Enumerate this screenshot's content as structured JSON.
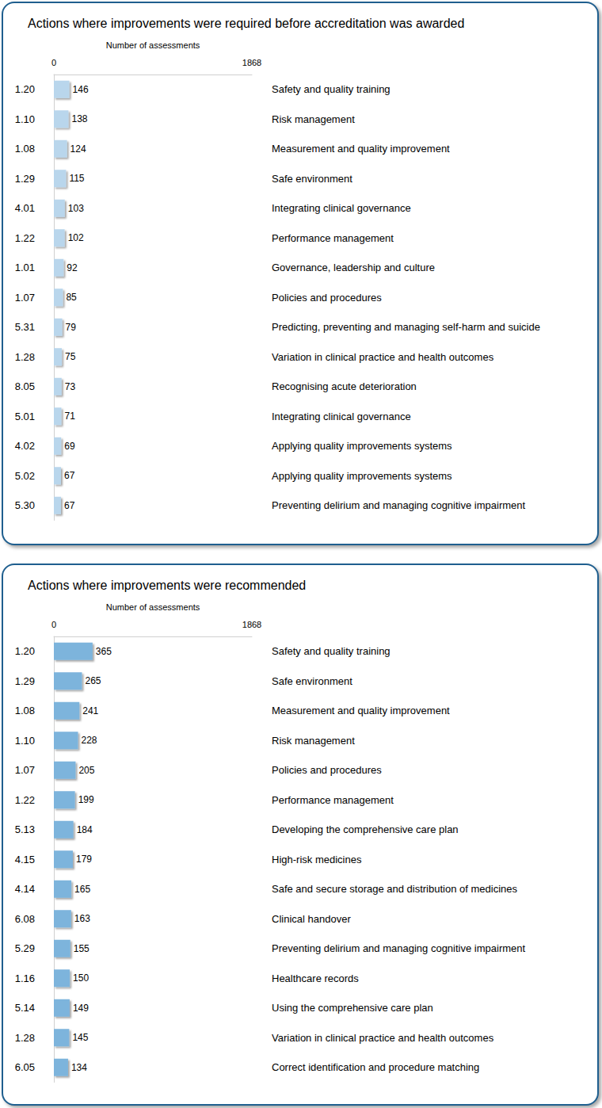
{
  "chart_data": [
    {
      "type": "bar",
      "title": "Actions where improvements were required before accreditation was awarded",
      "orientation": "horizontal",
      "xlabel": "Number of assessments",
      "categories": [
        "1.20",
        "1.10",
        "1.08",
        "1.29",
        "4.01",
        "1.22",
        "1.01",
        "1.07",
        "5.31",
        "1.28",
        "8.05",
        "5.01",
        "4.02",
        "5.02",
        "5.30"
      ],
      "labels": [
        "Safety and quality training",
        "Risk management",
        "Measurement and quality improvement",
        "Safe environment",
        "Integrating clinical governance",
        "Performance management",
        "Governance, leadership and culture",
        "Policies and procedures",
        "Predicting, preventing and managing self-harm and suicide",
        "Variation in clinical practice and health outcomes",
        "Recognising acute deterioration",
        "Integrating clinical governance",
        "Applying quality improvements systems",
        "Applying quality improvements systems",
        "Preventing delirium and managing cognitive impairment"
      ],
      "values": [
        146,
        138,
        124,
        115,
        103,
        102,
        92,
        85,
        79,
        75,
        73,
        71,
        69,
        67,
        67
      ],
      "xlim": [
        0,
        1868
      ],
      "xticks": [
        0,
        1868
      ],
      "data_labels": true,
      "grid": false,
      "color": "#b9d6ec"
    },
    {
      "type": "bar",
      "title": "Actions where improvements were recommended",
      "orientation": "horizontal",
      "xlabel": "Number of assessments",
      "categories": [
        "1.20",
        "1.29",
        "1.08",
        "1.10",
        "1.07",
        "1.22",
        "5.13",
        "4.15",
        "4.14",
        "6.08",
        "5.29",
        "1.16",
        "5.14",
        "1.28",
        "6.05"
      ],
      "labels": [
        "Safety and quality training",
        "Safe environment",
        "Measurement and quality improvement",
        "Risk management",
        "Policies and procedures",
        "Performance management",
        "Developing the comprehensive care plan",
        "High-risk medicines",
        "Safe and secure storage and distribution of medicines",
        "Clinical handover",
        "Preventing delirium and managing cognitive impairment",
        "Healthcare records",
        "Using the comprehensive care plan",
        "Variation in clinical practice and health outcomes",
        "Correct identification and procedure matching"
      ],
      "values": [
        365,
        265,
        241,
        228,
        205,
        199,
        184,
        179,
        165,
        163,
        155,
        150,
        149,
        145,
        134
      ],
      "xlim": [
        0,
        1868
      ],
      "xticks": [
        0,
        1868
      ],
      "data_labels": true,
      "grid": false,
      "color": "#7db4dc"
    }
  ]
}
